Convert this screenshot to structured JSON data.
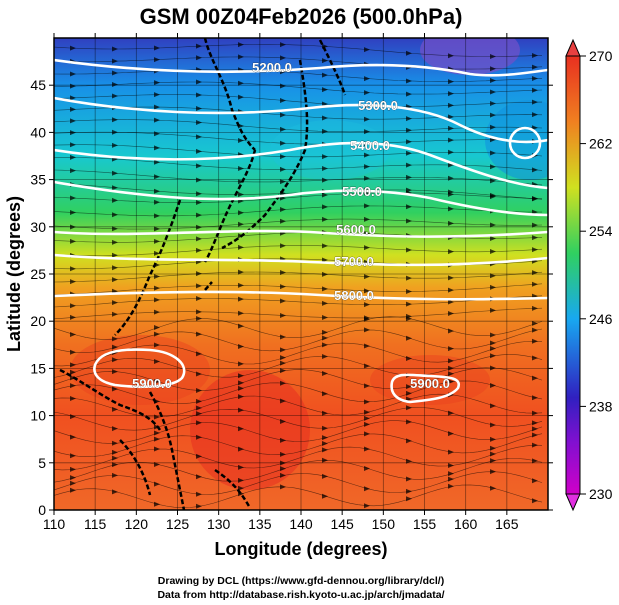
{
  "chart_data": {
    "type": "heatmap",
    "title": "GSM 00Z04Feb2026 (500.0hPa)",
    "xlabel": "Longitude (degrees)",
    "ylabel": "Latitude (degrees)",
    "xlim": [
      110,
      170
    ],
    "ylim": [
      0,
      50
    ],
    "x_ticks": [
      110,
      115,
      120,
      125,
      130,
      135,
      140,
      145,
      150,
      155,
      160,
      165
    ],
    "y_ticks": [
      0,
      5,
      10,
      15,
      20,
      25,
      30,
      35,
      40,
      45
    ],
    "grid": true,
    "colorbar": {
      "min": 230,
      "max": 270,
      "ticks": [
        230,
        238,
        246,
        254,
        262,
        270
      ],
      "colors": [
        "#d000c8",
        "#3020c0",
        "#18a8f0",
        "#30d060",
        "#d0e020",
        "#f08020",
        "#e83020"
      ]
    },
    "contour_labels": [
      "5200.0",
      "5300.0",
      "5400.0",
      "5500.0",
      "5600.0",
      "5700.0",
      "5800.0",
      "5900.0",
      "5900.0"
    ],
    "footer": [
      "Drawing by DCL (https://www.gfd-dennou.org/library/dcl/)",
      "Data from http://database.rish.kyoto-u.ac.jp/arch/jmadata/"
    ]
  }
}
